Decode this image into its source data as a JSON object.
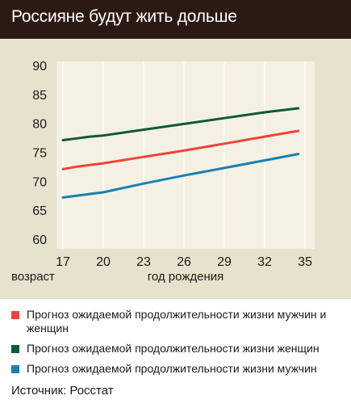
{
  "title": "Россияне будут жить дольше",
  "chart_data": {
    "type": "line",
    "xlabel": "год рождения",
    "ylabel": "возраст",
    "x": [
      17,
      20,
      23,
      26,
      29,
      32,
      35
    ],
    "x_ticks": [
      "17",
      "20",
      "23",
      "26",
      "29",
      "32",
      "35"
    ],
    "y_ticks": [
      "60",
      "65",
      "70",
      "75",
      "80",
      "85",
      "90"
    ],
    "xlim": [
      17,
      35
    ],
    "ylim": [
      60,
      90
    ],
    "grid": "vertical",
    "series": [
      {
        "name": "Прогноз ожидаемой продолжительности жизни мужчин и женщин",
        "color": "#ee4438",
        "x": [
          17,
          18,
          19,
          20,
          23,
          26,
          29,
          32,
          34.5
        ],
        "values": [
          72.1,
          72.5,
          72.8,
          73.1,
          74.2,
          75.3,
          76.5,
          77.7,
          78.7
        ]
      },
      {
        "name": "Прогноз ожидаемой продолжительности жизни женщин",
        "color": "#0f5a35",
        "x": [
          17,
          18,
          19,
          20,
          23,
          26,
          29,
          32,
          34.5
        ],
        "values": [
          77.1,
          77.4,
          77.7,
          77.9,
          78.9,
          79.9,
          80.9,
          81.9,
          82.6
        ]
      },
      {
        "name": "Прогноз ожидаемой продолжительности жизни мужчин",
        "color": "#1b7fb0",
        "x": [
          17,
          18,
          19,
          20,
          23,
          26,
          29,
          32,
          34.5
        ],
        "values": [
          67.2,
          67.5,
          67.8,
          68.1,
          69.6,
          71.0,
          72.3,
          73.6,
          74.7
        ]
      }
    ]
  },
  "source": "Источник: Росстат"
}
